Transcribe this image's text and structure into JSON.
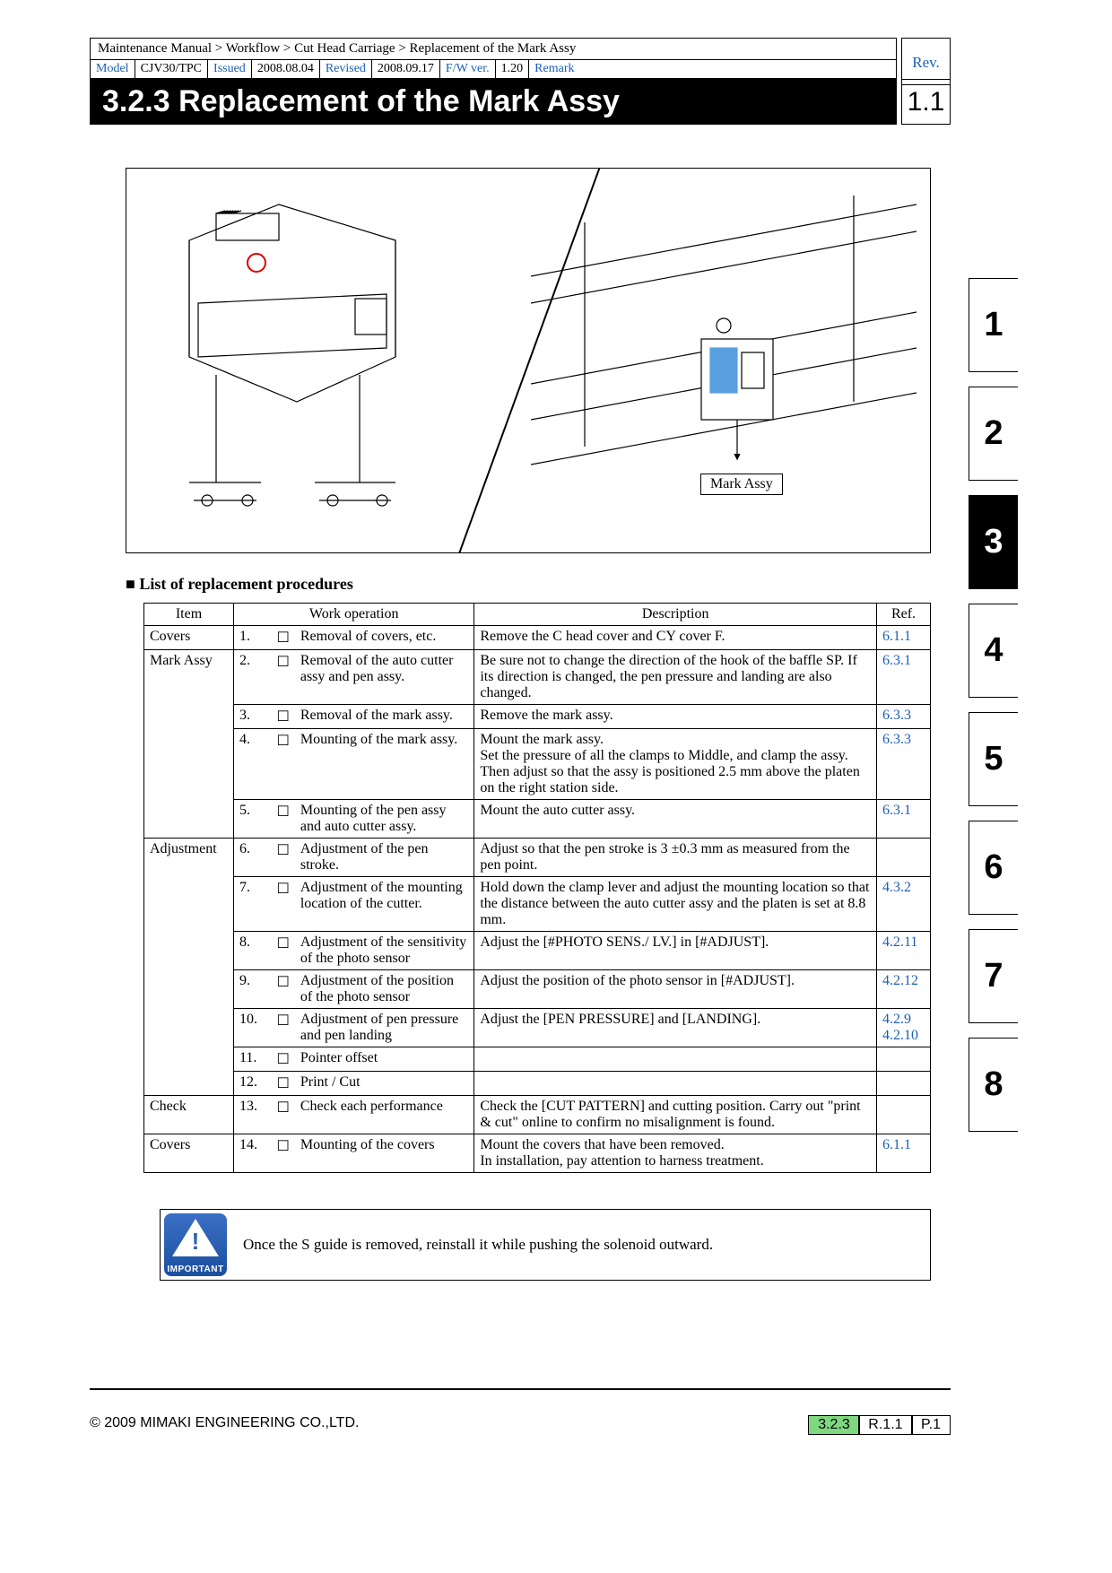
{
  "breadcrumb": "Maintenance Manual > Workflow > Cut Head Carriage > Replacement of the Mark Assy",
  "meta": {
    "model_lbl": "Model",
    "model": "CJV30/TPC",
    "issued_lbl": "Issued",
    "issued": "2008.08.04",
    "revised_lbl": "Revised",
    "revised": "2008.09.17",
    "fw_lbl": "F/W ver.",
    "fw": "1.20",
    "remark_lbl": "Remark"
  },
  "rev_label": "Rev.",
  "rev_num": "1.1",
  "title": "3.2.3  Replacement of the Mark Assy",
  "figure_label": "Mark Assy",
  "list_heading": "List of replacement procedures",
  "headers": {
    "item": "Item",
    "op": "Work operation",
    "desc": "Description",
    "ref": "Ref."
  },
  "rows": [
    {
      "item": "Covers",
      "n": "1.",
      "op": "Removal of covers, etc.",
      "desc": "Remove the C head cover and CY cover F.",
      "ref": "6.1.1"
    },
    {
      "item": "Mark Assy",
      "n": "2.",
      "op": "Removal of the auto cutter assy and pen assy.",
      "desc": "Be sure not to change the direction of the hook of the baffle SP. If its direction is changed, the pen pressure and landing are also changed.",
      "ref": "6.3.1"
    },
    {
      "item": "",
      "n": "3.",
      "op": "Removal of the mark assy.",
      "desc": "Remove the mark assy.",
      "ref": "6.3.3"
    },
    {
      "item": "",
      "n": "4.",
      "op": "Mounting of the mark assy.",
      "desc": "Mount the mark assy.\nSet the pressure of all the clamps to Middle, and clamp the assy. Then adjust so that the assy is positioned 2.5 mm above the platen on the right station side.",
      "ref": "6.3.3"
    },
    {
      "item": "",
      "n": "5.",
      "op": "Mounting of the pen assy and auto cutter assy.",
      "desc": "Mount the auto cutter assy.",
      "ref": "6.3.1"
    },
    {
      "item": "Adjustment",
      "n": "6.",
      "op": "Adjustment of the pen stroke.",
      "desc": "Adjust so that the pen stroke is 3 ±0.3 mm as measured from the pen point.",
      "ref": ""
    },
    {
      "item": "",
      "n": "7.",
      "op": "Adjustment of the mounting location of the cutter.",
      "desc": "Hold down the clamp lever and adjust the mounting location so that the distance between the auto cutter assy and the platen is set at 8.8 mm.",
      "ref": "4.3.2"
    },
    {
      "item": "",
      "n": "8.",
      "op": "Adjustment of the sensitivity of the photo sensor",
      "desc": "Adjust the [#PHOTO SENS./ LV.] in [#ADJUST].",
      "ref": "4.2.11"
    },
    {
      "item": "",
      "n": "9.",
      "op": "Adjustment of the position of the photo sensor",
      "desc": "Adjust the position of the photo sensor in [#ADJUST].",
      "ref": "4.2.12"
    },
    {
      "item": "",
      "n": "10.",
      "op": "Adjustment of pen pressure and pen landing",
      "desc": "Adjust the [PEN PRESSURE] and [LANDING].",
      "ref": "4.2.9\n4.2.10"
    },
    {
      "item": "",
      "n": "11.",
      "op": "Pointer offset",
      "desc": "",
      "ref": ""
    },
    {
      "item": "",
      "n": "12.",
      "op": "Print / Cut",
      "desc": "",
      "ref": ""
    },
    {
      "item": "Check",
      "n": "13.",
      "op": "Check each performance",
      "desc": "Check the [CUT PATTERN] and cutting position. Carry out \"print & cut\" online to confirm no misalignment is found.",
      "ref": ""
    },
    {
      "item": "Covers",
      "n": "14.",
      "op": "Mounting of the covers",
      "desc": "Mount the covers that have been removed.\nIn installation, pay attention to harness treatment.",
      "ref": "6.1.1"
    }
  ],
  "row_spans": {
    "0": 1,
    "1": 4,
    "5": 7,
    "12": 1,
    "13": 1
  },
  "important_label": "IMPORTANT",
  "important_text": "Once the S guide is removed, reinstall it while pushing the solenoid outward.",
  "tabs": [
    "1",
    "2",
    "3",
    "4",
    "5",
    "6",
    "7",
    "8"
  ],
  "active_tab": "3",
  "footer_left": "© 2009 MIMAKI ENGINEERING CO.,LTD.",
  "footer_sec": "3.2.3",
  "footer_rev": "R.1.1",
  "footer_page": "P.1",
  "colors": {
    "link": "#1a5fb4",
    "footer_green": "#7fd87f",
    "tab_active_bg": "#000000",
    "fig_accent": "#5aa0e0"
  }
}
